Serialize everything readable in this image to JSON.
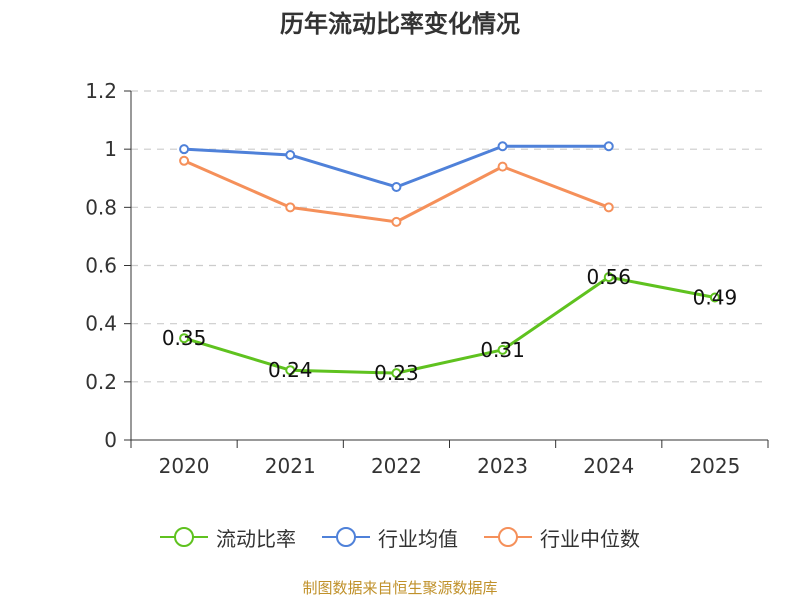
{
  "chart_data": {
    "type": "line",
    "title": "历年流动比率变化情况",
    "categories": [
      "2020",
      "2021",
      "2022",
      "2023",
      "2024",
      "2025"
    ],
    "ylim": [
      0,
      1.2
    ],
    "yticks": [
      0,
      0.2,
      0.4,
      0.6,
      0.8,
      1,
      1.2
    ],
    "ytick_labels": [
      "0",
      "0.2",
      "0.4",
      "0.6",
      "0.8",
      "1",
      "1.2"
    ],
    "grid": "dashed horizontal",
    "legend_position": "bottom",
    "series": [
      {
        "name": "流动比率",
        "color": "#5fc21f",
        "values": [
          0.35,
          0.24,
          0.23,
          0.31,
          0.56,
          0.49
        ],
        "labels": [
          "0.35",
          "0.24",
          "0.23",
          "0.31",
          "0.56",
          "0.49"
        ]
      },
      {
        "name": "行业均值",
        "color": "#4f81d9",
        "values": [
          1.0,
          0.98,
          0.87,
          1.01,
          1.01,
          null
        ]
      },
      {
        "name": "行业中位数",
        "color": "#f5905a",
        "values": [
          0.96,
          0.8,
          0.75,
          0.94,
          0.8,
          null
        ]
      }
    ]
  },
  "source_text": "制图数据来自恒生聚源数据库"
}
